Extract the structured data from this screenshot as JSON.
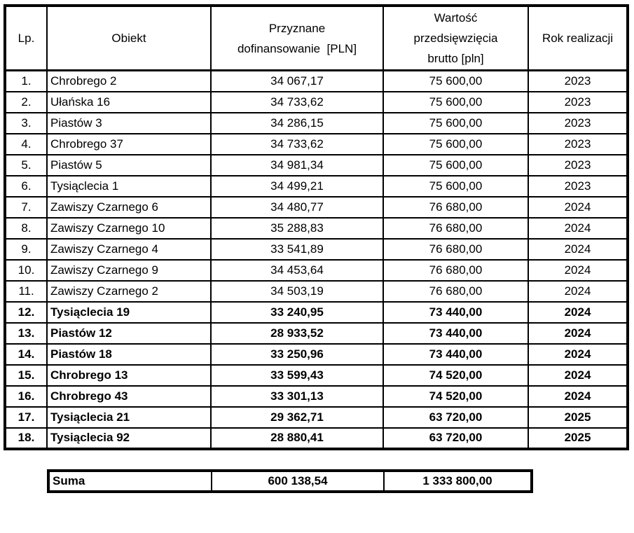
{
  "table": {
    "columns": [
      {
        "label": "Lp."
      },
      {
        "label": "Obiekt"
      },
      {
        "label": "Przyznane\ndofinansowanie  [PLN]"
      },
      {
        "label": "Wartość\nprzedsięwzięcia\nbrutto [pln]"
      },
      {
        "label": "Rok realizacji"
      }
    ],
    "rows": [
      {
        "lp": "1.",
        "obiekt": "Chrobrego 2",
        "dofinansowanie": "34 067,17",
        "wartosc": "75 600,00",
        "rok": "2023",
        "bold": false
      },
      {
        "lp": "2.",
        "obiekt": "Ułańska 16",
        "dofinansowanie": "34 733,62",
        "wartosc": "75 600,00",
        "rok": "2023",
        "bold": false
      },
      {
        "lp": "3.",
        "obiekt": "Piastów 3",
        "dofinansowanie": "34 286,15",
        "wartosc": "75 600,00",
        "rok": "2023",
        "bold": false
      },
      {
        "lp": "4.",
        "obiekt": "Chrobrego 37",
        "dofinansowanie": "34 733,62",
        "wartosc": "75 600,00",
        "rok": "2023",
        "bold": false
      },
      {
        "lp": "5.",
        "obiekt": "Piastów 5",
        "dofinansowanie": "34 981,34",
        "wartosc": "75 600,00",
        "rok": "2023",
        "bold": false
      },
      {
        "lp": "6.",
        "obiekt": "Tysiąclecia 1",
        "dofinansowanie": "34 499,21",
        "wartosc": "75 600,00",
        "rok": "2023",
        "bold": false
      },
      {
        "lp": "7.",
        "obiekt": "Zawiszy Czarnego 6",
        "dofinansowanie": "34 480,77",
        "wartosc": "76 680,00",
        "rok": "2024",
        "bold": false
      },
      {
        "lp": "8.",
        "obiekt": "Zawiszy Czarnego 10",
        "dofinansowanie": "35 288,83",
        "wartosc": "76 680,00",
        "rok": "2024",
        "bold": false
      },
      {
        "lp": "9.",
        "obiekt": "Zawiszy Czarnego 4",
        "dofinansowanie": "33 541,89",
        "wartosc": "76 680,00",
        "rok": "2024",
        "bold": false
      },
      {
        "lp": "10.",
        "obiekt": "Zawiszy Czarnego 9",
        "dofinansowanie": "34 453,64",
        "wartosc": "76 680,00",
        "rok": "2024",
        "bold": false
      },
      {
        "lp": "11.",
        "obiekt": "Zawiszy Czarnego 2",
        "dofinansowanie": "34 503,19",
        "wartosc": "76 680,00",
        "rok": "2024",
        "bold": false
      },
      {
        "lp": "12.",
        "obiekt": "Tysiąclecia 19",
        "dofinansowanie": "33 240,95",
        "wartosc": "73 440,00",
        "rok": "2024",
        "bold": true
      },
      {
        "lp": "13.",
        "obiekt": "Piastów 12",
        "dofinansowanie": "28 933,52",
        "wartosc": "73 440,00",
        "rok": "2024",
        "bold": true
      },
      {
        "lp": "14.",
        "obiekt": "Piastów 18",
        "dofinansowanie": "33 250,96",
        "wartosc": "73 440,00",
        "rok": "2024",
        "bold": true
      },
      {
        "lp": "15.",
        "obiekt": "Chrobrego 13",
        "dofinansowanie": "33 599,43",
        "wartosc": "74 520,00",
        "rok": "2024",
        "bold": true
      },
      {
        "lp": "16.",
        "obiekt": "Chrobrego 43",
        "dofinansowanie": "33 301,13",
        "wartosc": "74 520,00",
        "rok": "2024",
        "bold": true
      },
      {
        "lp": "17.",
        "obiekt": "Tysiąclecia 21",
        "dofinansowanie": "29 362,71",
        "wartosc": "63 720,00",
        "rok": "2025",
        "bold": true
      },
      {
        "lp": "18.",
        "obiekt": "Tysiąclecia 92",
        "dofinansowanie": "28 880,41",
        "wartosc": "63 720,00",
        "rok": "2025",
        "bold": true
      }
    ]
  },
  "summary": {
    "label": "Suma",
    "dofinansowanie": "600 138,54",
    "wartosc": "1 333 800,00"
  }
}
